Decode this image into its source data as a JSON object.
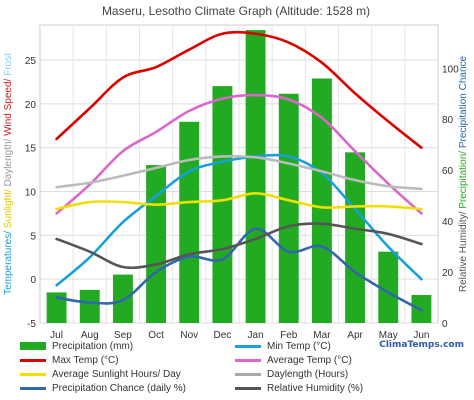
{
  "chart_data": {
    "type": "bar+line",
    "title": "Maseru, Lesotho Climate Graph (Altitude: 1528 m)",
    "brand": "ClimaTemps.com",
    "left_axis": {
      "label_parts": [
        {
          "text": "Temperatures/ ",
          "color": "#1aa0d8"
        },
        {
          "text": "Sunlight/ ",
          "color": "#e6c400"
        },
        {
          "text": "Daylength/ ",
          "color": "#999999"
        },
        {
          "text": "Wind Speed/ ",
          "color": "#cc2222"
        },
        {
          "text": "Frost",
          "color": "#88ccee"
        }
      ],
      "range": [
        -5,
        29
      ],
      "ticks": [
        -5,
        0,
        5,
        10,
        15,
        20,
        25
      ]
    },
    "right_axis": {
      "label_parts": [
        {
          "text": "Relative Humidity/ ",
          "color": "#555555"
        },
        {
          "text": "Precipitation/ ",
          "color": "#22aa22"
        },
        {
          "text": "Precipitation Chance",
          "color": "#2266aa"
        }
      ],
      "range": [
        0,
        117
      ],
      "ticks": [
        0,
        20,
        40,
        60,
        80,
        100
      ]
    },
    "categories": [
      "Jul",
      "Aug",
      "Sep",
      "Oct",
      "Nov",
      "Dec",
      "Jan",
      "Feb",
      "Mar",
      "Apr",
      "May",
      "Jun"
    ],
    "bars": {
      "name": "Precipitation (mm)",
      "color": "#22aa22",
      "axis": "right",
      "values": [
        12,
        13,
        19,
        62,
        79,
        93,
        115,
        90,
        96,
        67,
        28,
        11
      ]
    },
    "lines": [
      {
        "name": "Max Temp (°C)",
        "color": "#dd0000",
        "axis": "left",
        "values": [
          16,
          19.5,
          23,
          24.2,
          26.2,
          28,
          28,
          27,
          24.7,
          21.2,
          18,
          15
        ]
      },
      {
        "name": "Min Temp (°C)",
        "color": "#1aa0d8",
        "axis": "left",
        "values": [
          -0.7,
          2.5,
          6.5,
          9.5,
          12.3,
          13.4,
          14,
          14,
          12.1,
          8,
          3.7,
          0
        ]
      },
      {
        "name": "Average Temp (°C)",
        "color": "#dd66cc",
        "axis": "left",
        "values": [
          7.5,
          10.8,
          14.6,
          16.8,
          19.2,
          20.6,
          21,
          20.5,
          18.4,
          14.6,
          10.9,
          7.5
        ]
      },
      {
        "name": "Average Sunlight Hours/ Day",
        "color": "#f0e000",
        "axis": "left",
        "values": [
          8,
          8.8,
          8.8,
          8.5,
          8.8,
          9,
          9.8,
          9,
          8.2,
          8.3,
          8.3,
          8
        ]
      },
      {
        "name": "Daylength (Hours)",
        "color": "#bbbbbb",
        "axis": "left",
        "values": [
          10.5,
          11,
          11.8,
          12.7,
          13.6,
          14,
          13.9,
          13.2,
          12.3,
          11.3,
          10.6,
          10.3
        ]
      },
      {
        "name": "Precipitation Chance (daily %)",
        "color": "#3366aa",
        "axis": "right",
        "values": [
          10,
          8,
          9,
          20,
          26,
          25,
          37,
          28,
          30,
          20,
          12,
          5
        ]
      },
      {
        "name": "Relative Humidity (%)",
        "color": "#555555",
        "axis": "right",
        "values": [
          33,
          28,
          22,
          23,
          27,
          29,
          33,
          38,
          39,
          37,
          35,
          31
        ]
      }
    ],
    "grid": true
  },
  "legend": [
    {
      "label": "Precipitation (mm)",
      "color": "#22aa22",
      "kind": "bar"
    },
    {
      "label": "Min Temp (°C)",
      "color": "#1aa0d8",
      "kind": "line"
    },
    {
      "label": "Max Temp (°C)",
      "color": "#dd0000",
      "kind": "line"
    },
    {
      "label": "Average Temp (°C)",
      "color": "#dd66cc",
      "kind": "line"
    },
    {
      "label": "Average Sunlight Hours/ Day",
      "color": "#f0e000",
      "kind": "line"
    },
    {
      "label": "Daylength (Hours)",
      "color": "#aaaaaa",
      "kind": "line"
    },
    {
      "label": "Precipitation Chance (daily %)",
      "color": "#3366aa",
      "kind": "line"
    },
    {
      "label": "Relative Humidity (%)",
      "color": "#555555",
      "kind": "line"
    }
  ]
}
